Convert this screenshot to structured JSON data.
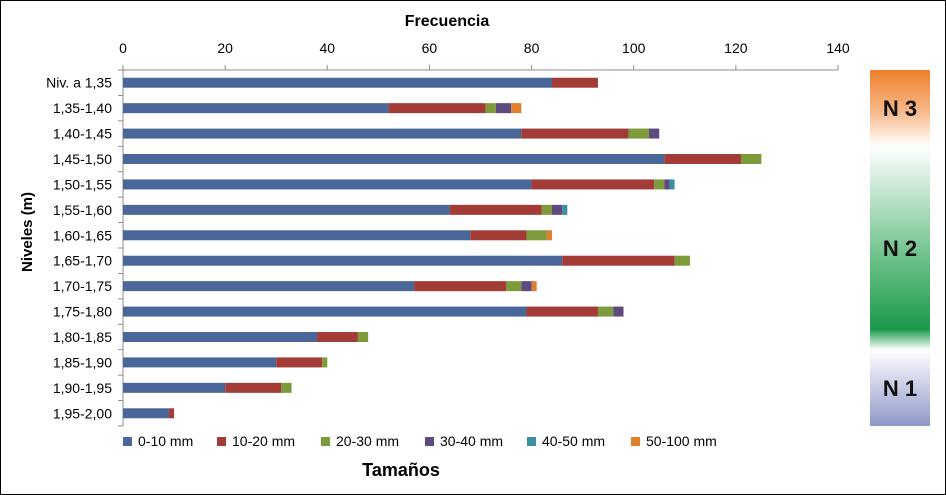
{
  "chart_data": {
    "type": "bar",
    "orientation": "horizontal",
    "stacked": true,
    "title": "Frecuencia",
    "xlabel": "Frecuencia",
    "ylabel": "Niveles (m)",
    "legend_title": "Tamaños",
    "legend_position": "bottom",
    "xlim": [
      0,
      140
    ],
    "xticks": [
      0,
      20,
      40,
      60,
      80,
      100,
      120,
      140
    ],
    "grid": false,
    "categories": [
      "Niv. a 1,35",
      "1,35-1,40",
      "1,40-1,45",
      "1,45-1,50",
      "1,50-1,55",
      "1,55-1,60",
      "1,60-1,65",
      "1,65-1,70",
      "1,70-1,75",
      "1,75-1,80",
      "1,80-1,85",
      "1,85-1,90",
      "1,90-1,95",
      "1,95-2,00"
    ],
    "series": [
      {
        "name": "0-10 mm",
        "color": "#4a6799",
        "values": [
          84,
          52,
          78,
          106,
          80,
          64,
          68,
          86,
          57,
          79,
          38,
          30,
          20,
          9
        ]
      },
      {
        "name": "10-20 mm",
        "color": "#a33b37",
        "values": [
          9,
          19,
          21,
          15,
          24,
          18,
          11,
          22,
          18,
          14,
          8,
          9,
          11,
          1
        ]
      },
      {
        "name": "20-30 mm",
        "color": "#7d9b3a",
        "values": [
          0,
          2,
          4,
          4,
          2,
          2,
          4,
          3,
          3,
          3,
          2,
          1,
          2,
          0
        ]
      },
      {
        "name": "30-40 mm",
        "color": "#5e4a7f",
        "values": [
          0,
          3,
          2,
          0,
          1,
          2,
          0,
          0,
          2,
          2,
          0,
          0,
          0,
          0
        ]
      },
      {
        "name": "40-50 mm",
        "color": "#3b8fa3",
        "values": [
          0,
          0,
          0,
          0,
          1,
          1,
          0,
          0,
          0,
          0,
          0,
          0,
          0,
          0
        ]
      },
      {
        "name": "50-100 mm",
        "color": "#e07f2c",
        "values": [
          0,
          2,
          0,
          0,
          0,
          0,
          1,
          0,
          1,
          0,
          0,
          0,
          0,
          0
        ]
      }
    ],
    "zones": [
      {
        "label": "N 3",
        "start_category": "Niv. a 1,35",
        "end_category": "1,40-1,45",
        "color": "#ef7f2c"
      },
      {
        "label": "N 2",
        "start_category": "1,45-1,50",
        "end_category": "1,80-1,85",
        "color": "#1b9a4a"
      },
      {
        "label": "N 1",
        "start_category": "1,85-1,90",
        "end_category": "1,95-2,00",
        "color": "#8f97c8"
      }
    ]
  }
}
